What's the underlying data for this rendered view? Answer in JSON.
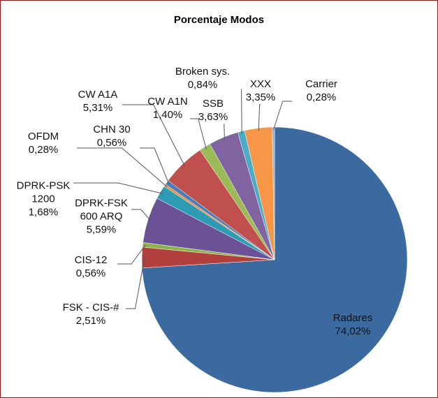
{
  "chart_data": {
    "type": "pie",
    "title": "Porcentaje Modos",
    "categories": [
      "Radares",
      "FSK - CIS-#",
      "CIS-12",
      "DPRK-FSK\n600 ARQ",
      "DPRK-PSK\n1200",
      "OFDM",
      "CHN 30",
      "CW A1A",
      "CW A1N",
      "SSB",
      "Broken sys.",
      "XXX",
      "Carrier"
    ],
    "values": [
      74.02,
      2.51,
      0.56,
      5.59,
      1.68,
      0.28,
      0.56,
      5.31,
      1.4,
      3.63,
      0.84,
      3.35,
      0.28
    ],
    "value_labels": [
      "74,02%",
      "2,51%",
      "0,56%",
      "5,59%",
      "1,68%",
      "0,28%",
      "0,56%",
      "5,31%",
      "1,40%",
      "3,63%",
      "0,84%",
      "3,35%",
      "0,28%"
    ],
    "colors": [
      "#3b6aa0",
      "#b2413e",
      "#8cb34a",
      "#6b5196",
      "#2e9bb5",
      "#f08c3a",
      "#4a7ebb",
      "#c0504d",
      "#9bbb59",
      "#8064a2",
      "#4bacc6",
      "#f79646",
      "#95b3d7"
    ]
  }
}
